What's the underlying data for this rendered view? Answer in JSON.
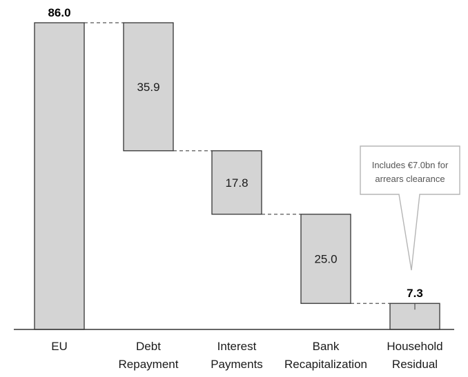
{
  "chart_data": {
    "type": "waterfall",
    "categories": [
      {
        "key": "eu",
        "lines": [
          "EU"
        ]
      },
      {
        "key": "debt",
        "lines": [
          "Debt",
          "Repayment"
        ]
      },
      {
        "key": "interest",
        "lines": [
          "Interest",
          "Payments"
        ]
      },
      {
        "key": "bank",
        "lines": [
          "Bank",
          "Recapitalization"
        ]
      },
      {
        "key": "household",
        "lines": [
          "Household",
          "Residual"
        ]
      }
    ],
    "bars": [
      {
        "key": "eu",
        "kind": "total",
        "value": 86.0,
        "start": 0,
        "end": 86.0,
        "label": "86.0",
        "label_position": "above",
        "label_bold": true
      },
      {
        "key": "debt",
        "kind": "decrease",
        "value": 35.9,
        "start": 86.0,
        "end": 50.1,
        "label": "35.9",
        "label_position": "inside",
        "label_bold": false
      },
      {
        "key": "interest",
        "kind": "decrease",
        "value": 17.8,
        "start": 50.1,
        "end": 32.3,
        "label": "17.8",
        "label_position": "inside",
        "label_bold": false
      },
      {
        "key": "bank",
        "kind": "decrease",
        "value": 25.0,
        "start": 32.3,
        "end": 7.3,
        "label": "25.0",
        "label_position": "inside",
        "label_bold": false
      },
      {
        "key": "household",
        "kind": "total",
        "value": 7.3,
        "start": 0,
        "end": 7.3,
        "label": "7.3",
        "label_position": "above",
        "label_bold": true
      }
    ],
    "ylim": [
      0,
      86.0
    ],
    "connectors": "dashed",
    "grid": false,
    "legend": "none",
    "annotation": {
      "target": "household",
      "lines": [
        "Includes €7.0bn for",
        "arrears clearance"
      ]
    },
    "colors": {
      "bar_fill": "#d4d4d4",
      "bar_stroke": "#333333",
      "axis": "#333333",
      "connector": "#555555",
      "callout_stroke": "#b5b5b5",
      "callout_text": "#555555"
    }
  }
}
